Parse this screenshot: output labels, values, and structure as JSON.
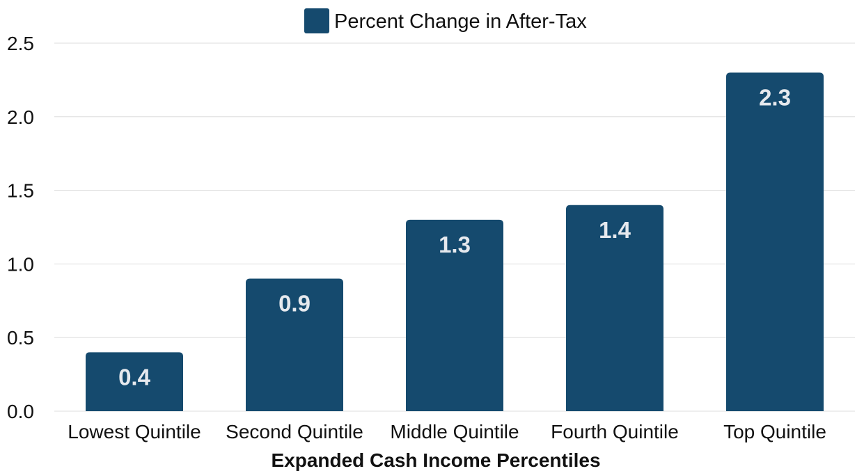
{
  "chart_data": {
    "type": "bar",
    "categories": [
      "Lowest Quintile",
      "Second Quintile",
      "Middle Quintile",
      "Fourth Quintile",
      "Top Quintile"
    ],
    "series": [
      {
        "name": "Percent Change in After-Tax",
        "values": [
          0.4,
          0.9,
          1.3,
          1.4,
          2.3
        ],
        "color": "#154a6e"
      }
    ],
    "data_labels": [
      "0.4",
      "0.9",
      "1.3",
      "1.4",
      "2.3"
    ],
    "xlabel": "Expanded Cash Income Percentiles",
    "ylabel": "",
    "ylim": [
      0,
      2.5
    ],
    "yticks": [
      "0.0",
      "0.5",
      "1.0",
      "1.5",
      "2.0",
      "2.5"
    ],
    "grid": true,
    "legend_position": "top-center"
  }
}
